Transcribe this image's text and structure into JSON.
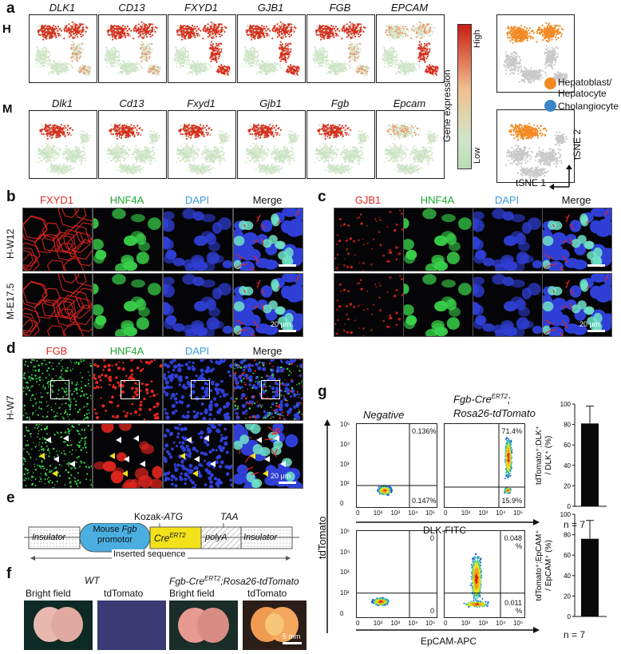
{
  "panel_a": {
    "label": "a",
    "human_label": "H",
    "mouse_label": "M",
    "human_genes": [
      "DLK1",
      "CD13",
      "FXYD1",
      "GJB1",
      "FGB",
      "EPCAM"
    ],
    "mouse_genes": [
      "Dlk1",
      "Cd13",
      "Fxyd1",
      "Gjb1",
      "Fgb",
      "Epcam"
    ],
    "colorbar_title": "Gene expression",
    "colorbar_high": "High",
    "colorbar_low": "Low",
    "legend": [
      {
        "label": "Hepatoblast/ Hepatocyte",
        "color": "#f28a24"
      },
      {
        "label": "Cholangiocyte",
        "color": "#3a86c8"
      }
    ],
    "axis_x": "tSNE 1",
    "axis_y": "tSNE 2",
    "colors": {
      "high": "#d62f1e",
      "low": "#c8e3c0",
      "gray": "#c9c9c9",
      "orange": "#f28a24"
    }
  },
  "panel_b": {
    "label": "b",
    "channels": [
      "FXYD1",
      "HNF4A",
      "DAPI",
      "Merge"
    ],
    "rows": [
      "H-W12",
      "M-E17.5"
    ],
    "scale": "20 μm"
  },
  "panel_c": {
    "label": "c",
    "channels": [
      "GJB1",
      "HNF4A",
      "DAPI",
      "Merge"
    ],
    "scale": "20 μm"
  },
  "panel_d": {
    "label": "d",
    "channels": [
      "FGB",
      "HNF4A",
      "DAPI",
      "Merge"
    ],
    "row": "H-W7",
    "scale": "20 μm"
  },
  "panel_e": {
    "label": "e",
    "kozak": "Kozak-",
    "atg": "ATG",
    "taa": "TAA",
    "insulator": "Insulator",
    "promoter_line1": "Mouse ",
    "promoter_fgb": "Fgb",
    "promoter_line2": "promotor",
    "cre": "Cre",
    "cre_sup": "ERT2",
    "polya": "polyA",
    "inserted": "Inserted sequence"
  },
  "panel_f": {
    "label": "f",
    "wt": "WT",
    "tg_prefix": "Fgb-Cre",
    "tg_sup": "ERT2",
    "tg_suffix": ";Rosa26-tdTomato",
    "bright": "Bright field",
    "tdtomato": "tdTomato",
    "scale": "5 mm"
  },
  "panel_g": {
    "label": "g",
    "negative": "Negative",
    "tg_line1_prefix": "Fgb-Cre",
    "tg_line1_sup": "ERT2",
    "tg_line1_suffix": ";",
    "tg_line2": "Rosa26-tdTomato",
    "y_axis": "tdTomato",
    "x_axis_top": "DLK-FITC",
    "x_axis_bottom": "EpCAM-APC",
    "yticks": [
      "10⁵",
      "10⁴",
      "10³",
      "10²",
      "0"
    ],
    "xticks": [
      "0",
      "10²",
      "10³",
      "10⁴",
      "10⁵"
    ],
    "top_neg_quads": {
      "ur": "0.136%",
      "lr": "0.147%"
    },
    "top_tg_quads": {
      "ur": "71.4%",
      "lr": "15.9%"
    },
    "bot_neg_quads": {
      "ur": "0",
      "lr": "0"
    },
    "bot_tg_quads": {
      "ur": "0.048 %",
      "lr": "0.011 %"
    },
    "bar1_ylabel": "tdTomato⁺;DLK⁺ / DLK⁺ (%)",
    "bar2_ylabel": "tdTomato⁺;EpCAM⁺ / EpCAM⁺ (%)",
    "n_label": "n = 7",
    "bar_ticks": [
      "100",
      "80",
      "60",
      "40",
      "20",
      "0"
    ]
  },
  "chart_data": [
    {
      "type": "bar",
      "categories": [
        ""
      ],
      "values": [
        81
      ],
      "error": [
        17
      ],
      "ylabel": "tdTomato⁺;DLK⁺ / DLK⁺ (%)",
      "ylim": [
        0,
        100
      ]
    },
    {
      "type": "bar",
      "categories": [
        ""
      ],
      "values": [
        76
      ],
      "error": [
        18
      ],
      "ylabel": "tdTomato⁺;EpCAM⁺ / EpCAM⁺ (%)",
      "ylim": [
        0,
        100
      ]
    }
  ]
}
